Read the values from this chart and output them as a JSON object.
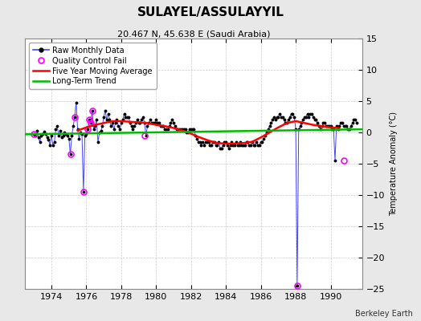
{
  "title": "SULAYEL/ASSULAYYIL",
  "subtitle": "20.467 N, 45.638 E (Saudi Arabia)",
  "ylabel": "Temperature Anomaly (°C)",
  "footer": "Berkeley Earth",
  "background_color": "#e8e8e8",
  "plot_bg_color": "#ffffff",
  "ylim": [
    -25,
    15
  ],
  "yticks": [
    -25,
    -20,
    -15,
    -10,
    -5,
    0,
    5,
    10,
    15
  ],
  "xlim": [
    1972.5,
    1991.8
  ],
  "xticks": [
    1974,
    1976,
    1978,
    1980,
    1982,
    1984,
    1986,
    1988,
    1990
  ],
  "raw_color": "#4444ff",
  "raw_dot_color": "#000000",
  "qc_fail_color": "#ff00ff",
  "moving_avg_color": "#ff0000",
  "trend_color": "#00bb00",
  "raw_monthly_times": [
    1973.0,
    1973.083,
    1973.167,
    1973.25,
    1973.333,
    1973.417,
    1973.5,
    1973.583,
    1973.667,
    1973.75,
    1973.833,
    1973.917,
    1974.0,
    1974.083,
    1974.167,
    1974.25,
    1974.333,
    1974.417,
    1974.5,
    1974.583,
    1974.667,
    1974.75,
    1974.833,
    1974.917,
    1975.0,
    1975.083,
    1975.167,
    1975.25,
    1975.333,
    1975.417,
    1975.5,
    1975.583,
    1975.667,
    1975.75,
    1975.833,
    1975.917,
    1976.0,
    1976.083,
    1976.167,
    1976.25,
    1976.333,
    1976.417,
    1976.5,
    1976.583,
    1976.667,
    1976.75,
    1976.833,
    1976.917,
    1977.0,
    1977.083,
    1977.167,
    1977.25,
    1977.333,
    1977.417,
    1977.5,
    1977.583,
    1977.667,
    1977.75,
    1977.833,
    1977.917,
    1978.0,
    1978.083,
    1978.167,
    1978.25,
    1978.333,
    1978.417,
    1978.5,
    1978.583,
    1978.667,
    1978.75,
    1978.833,
    1978.917,
    1979.0,
    1979.083,
    1979.167,
    1979.25,
    1979.333,
    1979.417,
    1979.5,
    1979.583,
    1979.667,
    1979.75,
    1979.833,
    1979.917,
    1980.0,
    1980.083,
    1980.167,
    1980.25,
    1980.333,
    1980.417,
    1980.5,
    1980.583,
    1980.667,
    1980.75,
    1980.833,
    1980.917,
    1981.0,
    1981.083,
    1981.167,
    1981.25,
    1981.333,
    1981.417,
    1981.5,
    1981.583,
    1981.667,
    1981.75,
    1981.833,
    1981.917,
    1982.0,
    1982.083,
    1982.167,
    1982.25,
    1982.333,
    1982.417,
    1982.5,
    1982.583,
    1982.667,
    1982.75,
    1982.833,
    1982.917,
    1983.0,
    1983.083,
    1983.167,
    1983.25,
    1983.333,
    1983.417,
    1983.5,
    1983.583,
    1983.667,
    1983.75,
    1983.833,
    1983.917,
    1984.0,
    1984.083,
    1984.167,
    1984.25,
    1984.333,
    1984.417,
    1984.5,
    1984.583,
    1984.667,
    1984.75,
    1984.833,
    1984.917,
    1985.0,
    1985.083,
    1985.167,
    1985.25,
    1985.333,
    1985.417,
    1985.5,
    1985.583,
    1985.667,
    1985.75,
    1985.833,
    1985.917,
    1986.0,
    1986.083,
    1986.167,
    1986.25,
    1986.333,
    1986.417,
    1986.5,
    1986.583,
    1986.667,
    1986.75,
    1986.833,
    1986.917,
    1987.0,
    1987.083,
    1987.167,
    1987.25,
    1987.333,
    1987.417,
    1987.5,
    1987.583,
    1987.667,
    1987.75,
    1987.833,
    1987.917,
    1988.0,
    1988.083,
    1988.167,
    1988.25,
    1988.333,
    1988.417,
    1988.5,
    1988.583,
    1988.667,
    1988.75,
    1988.833,
    1988.917,
    1989.0,
    1989.083,
    1989.167,
    1989.25,
    1989.333,
    1989.417,
    1989.5,
    1989.583,
    1989.667,
    1989.75,
    1989.833,
    1989.917,
    1990.0,
    1990.083,
    1990.167,
    1990.25,
    1990.333,
    1990.417,
    1990.5,
    1990.583,
    1990.667,
    1990.75,
    1990.833,
    1990.917,
    1991.0,
    1991.083,
    1991.167,
    1991.25,
    1991.333,
    1991.417,
    1991.5
  ],
  "raw_monthly_values": [
    -0.3,
    -0.5,
    0.2,
    -0.8,
    -1.5,
    -0.5,
    -0.2,
    0.1,
    -0.3,
    -0.8,
    -1.2,
    -2.0,
    -0.5,
    -2.0,
    -1.5,
    0.5,
    1.0,
    -0.5,
    0.2,
    -0.8,
    -0.5,
    0.0,
    -0.3,
    -0.5,
    -1.0,
    -3.5,
    -0.5,
    1.0,
    2.5,
    4.8,
    0.5,
    -1.0,
    0.0,
    -0.3,
    -9.5,
    -0.5,
    -0.2,
    0.5,
    2.0,
    1.5,
    3.5,
    0.5,
    1.0,
    2.0,
    -1.5,
    0.0,
    0.2,
    1.0,
    2.5,
    3.5,
    2.0,
    3.0,
    2.0,
    1.0,
    1.5,
    0.5,
    1.5,
    2.0,
    1.0,
    0.5,
    1.5,
    2.0,
    3.0,
    2.5,
    2.5,
    2.5,
    1.5,
    1.0,
    0.5,
    1.0,
    1.5,
    2.0,
    1.5,
    1.5,
    2.0,
    2.5,
    1.5,
    -0.5,
    1.0,
    1.5,
    2.0,
    1.5,
    1.5,
    1.5,
    2.0,
    1.5,
    1.5,
    1.0,
    1.0,
    1.0,
    0.5,
    0.5,
    0.5,
    1.0,
    1.5,
    2.0,
    1.5,
    1.0,
    0.5,
    0.5,
    0.5,
    0.5,
    0.5,
    0.5,
    0.5,
    0.0,
    0.0,
    0.5,
    0.5,
    0.5,
    0.5,
    -0.5,
    -1.0,
    -1.5,
    -1.5,
    -2.0,
    -1.5,
    -2.0,
    -1.5,
    -1.5,
    -1.5,
    -2.0,
    -2.0,
    -1.5,
    -1.5,
    -2.0,
    -2.0,
    -1.5,
    -2.5,
    -2.5,
    -2.0,
    -1.5,
    -1.5,
    -2.0,
    -2.5,
    -2.0,
    -1.5,
    -2.0,
    -2.0,
    -1.5,
    -2.0,
    -2.0,
    -1.5,
    -2.0,
    -2.0,
    -2.0,
    -1.5,
    -1.5,
    -2.0,
    -2.0,
    -1.5,
    -2.0,
    -2.0,
    -1.5,
    -2.0,
    -2.0,
    -1.5,
    -1.5,
    -1.0,
    -0.5,
    0.0,
    0.5,
    1.0,
    1.5,
    2.0,
    2.5,
    2.0,
    2.5,
    2.5,
    3.0,
    2.5,
    2.5,
    2.0,
    1.5,
    1.5,
    2.0,
    2.5,
    3.0,
    3.0,
    2.5,
    0.5,
    -24.5,
    0.5,
    1.0,
    1.5,
    2.0,
    2.5,
    2.5,
    3.0,
    2.5,
    3.0,
    3.0,
    2.5,
    2.0,
    2.0,
    1.5,
    1.0,
    0.5,
    1.0,
    1.5,
    1.5,
    1.0,
    1.0,
    1.0,
    1.0,
    0.5,
    0.5,
    -4.5,
    1.0,
    0.5,
    1.0,
    1.5,
    1.5,
    1.0,
    1.0,
    1.0,
    0.5,
    0.5,
    1.0,
    1.5,
    2.0,
    2.0,
    1.5
  ],
  "qc_fail_times": [
    1973.0,
    1975.083,
    1975.333,
    1975.833,
    1976.083,
    1976.167,
    1976.25,
    1976.333,
    1979.333,
    1988.083,
    1990.75
  ],
  "qc_fail_values": [
    -0.3,
    -3.5,
    2.5,
    -9.5,
    0.5,
    2.0,
    1.5,
    3.5,
    -0.5,
    -24.5,
    -4.5
  ],
  "moving_avg_times": [
    1975.5,
    1976.0,
    1976.5,
    1977.0,
    1977.5,
    1978.0,
    1978.5,
    1979.0,
    1979.5,
    1980.0,
    1980.5,
    1981.0,
    1981.5,
    1982.0,
    1982.5,
    1983.0,
    1983.5,
    1984.0,
    1984.5,
    1985.0,
    1985.5,
    1986.0,
    1986.5,
    1987.0,
    1987.5,
    1988.0,
    1988.5,
    1989.0,
    1989.5,
    1990.0,
    1990.5
  ],
  "moving_avg_values": [
    0.3,
    0.8,
    1.2,
    1.5,
    1.8,
    1.8,
    1.7,
    1.6,
    1.5,
    1.2,
    1.0,
    0.7,
    0.3,
    -0.2,
    -0.8,
    -1.3,
    -1.7,
    -1.8,
    -1.8,
    -1.7,
    -1.5,
    -0.8,
    0.0,
    0.8,
    1.5,
    1.8,
    1.5,
    1.2,
    1.0,
    0.8,
    0.7
  ],
  "trend_times": [
    1972.5,
    1991.8
  ],
  "trend_values": [
    -0.3,
    0.5
  ],
  "title_fontsize": 11,
  "subtitle_fontsize": 8,
  "ylabel_fontsize": 7,
  "tick_fontsize": 8,
  "legend_fontsize": 7,
  "footer_fontsize": 7
}
